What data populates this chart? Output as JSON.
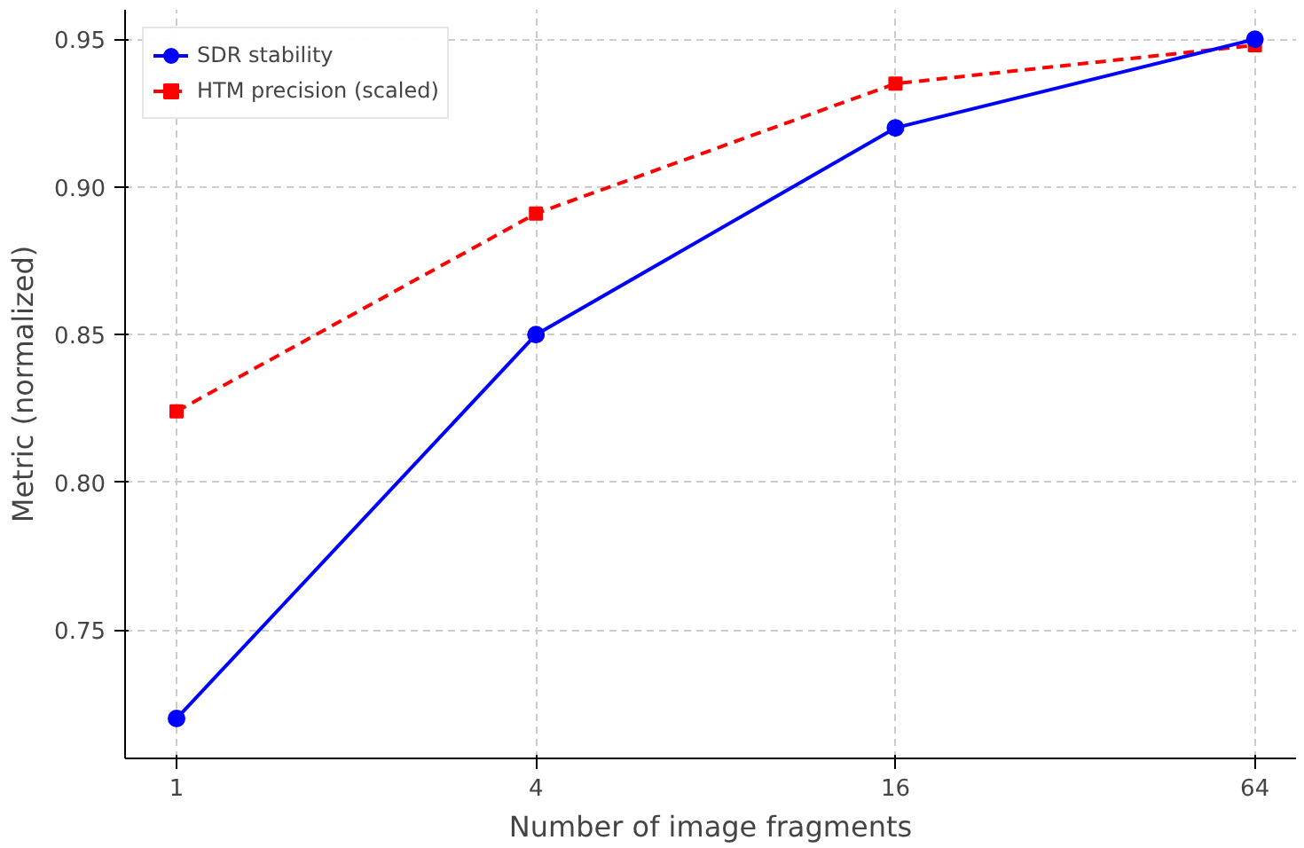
{
  "chart_data": {
    "type": "line",
    "xlabel": "Number of image fragments",
    "ylabel": "Metric (normalized)",
    "x": [
      1,
      4,
      16,
      64
    ],
    "series": [
      {
        "name": "SDR stability",
        "color": "#0000ff",
        "values": [
          0.72,
          0.85,
          0.92,
          0.95
        ],
        "marker": "circle",
        "line_style": "solid"
      },
      {
        "name": "HTM precision (scaled)",
        "color": "#ff0000",
        "values": [
          0.824,
          0.891,
          0.935,
          0.948
        ],
        "marker": "square",
        "line_style": "dashed"
      }
    ],
    "log": "x",
    "xlim": [
      0.82,
      75
    ],
    "ylim": [
      0.7065,
      0.96
    ],
    "xticks": [
      1,
      4,
      16,
      64
    ],
    "yticks": [
      {
        "value": 0.75,
        "label": "0.75"
      },
      {
        "value": 0.8,
        "label": "0.80"
      },
      {
        "value": 0.85,
        "label": "0.85"
      },
      {
        "value": 0.9,
        "label": "0.90"
      },
      {
        "value": 0.95,
        "label": "0.95"
      }
    ],
    "grid": true,
    "legend": "top left"
  }
}
